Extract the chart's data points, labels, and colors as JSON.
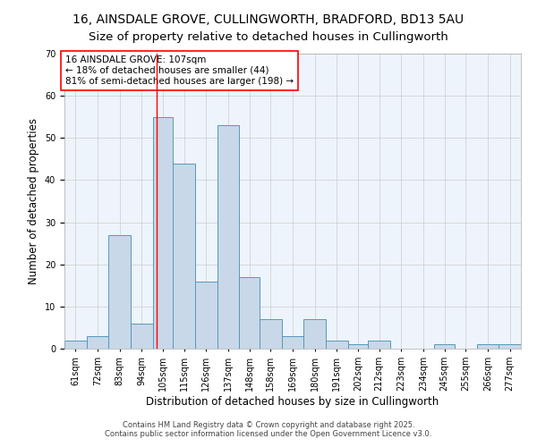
{
  "title_line1": "16, AINSDALE GROVE, CULLINGWORTH, BRADFORD, BD13 5AU",
  "title_line2": "Size of property relative to detached houses in Cullingworth",
  "xlabel": "Distribution of detached houses by size in Cullingworth",
  "ylabel": "Number of detached properties",
  "bar_color": "#c8d8e8",
  "bar_edge_color": "#5599bb",
  "background_color": "#eef4fb",
  "grid_color": "#cccccc",
  "bin_labels": [
    "61sqm",
    "72sqm",
    "83sqm",
    "94sqm",
    "105sqm",
    "115sqm",
    "126sqm",
    "137sqm",
    "148sqm",
    "158sqm",
    "169sqm",
    "180sqm",
    "191sqm",
    "202sqm",
    "212sqm",
    "223sqm",
    "234sqm",
    "245sqm",
    "255sqm",
    "266sqm",
    "277sqm"
  ],
  "bin_edges": [
    61,
    72,
    83,
    94,
    105,
    115,
    126,
    137,
    148,
    158,
    169,
    180,
    191,
    202,
    212,
    223,
    234,
    245,
    255,
    266,
    277,
    288
  ],
  "bar_heights": [
    2,
    3,
    27,
    6,
    55,
    44,
    16,
    53,
    17,
    7,
    3,
    7,
    2,
    1,
    2,
    0,
    0,
    1,
    0,
    1,
    1
  ],
  "ylim": [
    0,
    70
  ],
  "yticks": [
    0,
    10,
    20,
    30,
    40,
    50,
    60,
    70
  ],
  "red_line_x": 107,
  "annotation_text": "16 AINSDALE GROVE: 107sqm\n← 18% of detached houses are smaller (44)\n81% of semi-detached houses are larger (198) →",
  "footer_line1": "Contains HM Land Registry data © Crown copyright and database right 2025.",
  "footer_line2": "Contains public sector information licensed under the Open Government Licence v3.0.",
  "title_fontsize": 10,
  "axis_label_fontsize": 8.5,
  "tick_fontsize": 7,
  "annotation_fontsize": 7.5,
  "footer_fontsize": 6
}
